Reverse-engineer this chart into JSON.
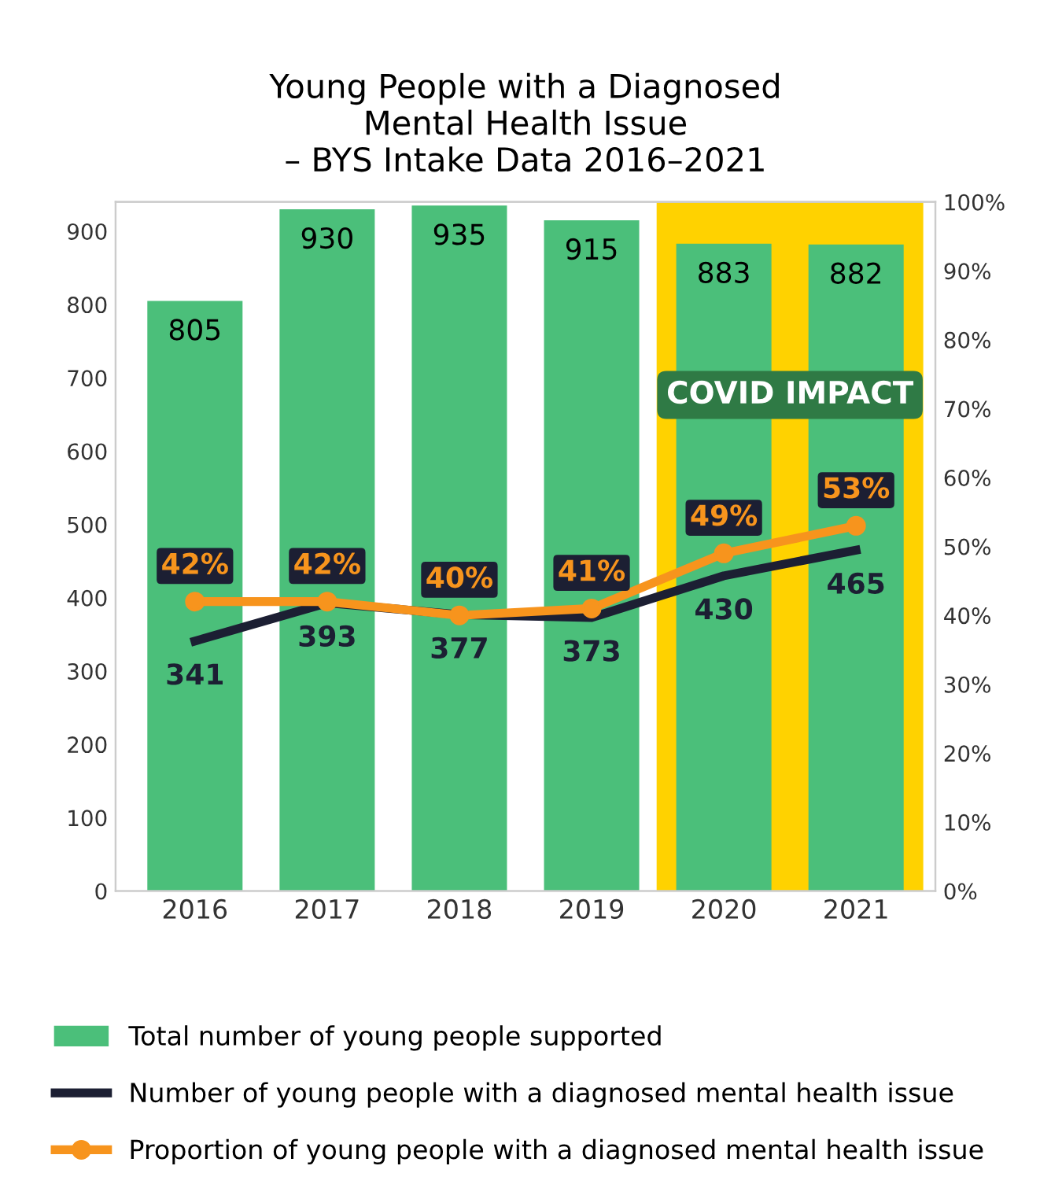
{
  "chart_data": {
    "type": "bar",
    "title": "Young People with a Diagnosed\nMental Health Issue\n– BYS Intake Data 2016–2021",
    "categories": [
      "2016",
      "2017",
      "2018",
      "2019",
      "2020",
      "2021"
    ],
    "series": [
      {
        "name": "Total number of young people supported",
        "color": "#4bbf7a",
        "values": [
          805,
          930,
          935,
          915,
          883,
          882
        ]
      },
      {
        "name": "Number of young people with a diagnosed mental health issue",
        "type": "line",
        "color": "#1c1f33",
        "marker": "none",
        "values": [
          341,
          393,
          377,
          373,
          430,
          465
        ],
        "value_labels": [
          "341",
          "393",
          "377",
          "373",
          "430",
          "465"
        ]
      },
      {
        "name": "Proportion of young people with a diagnosed mental health issue",
        "type": "line",
        "axis": "y2",
        "color": "#f7941d",
        "marker": "circle",
        "values": [
          42,
          42,
          40,
          41,
          49,
          53
        ],
        "value_labels": [
          "42%",
          "42%",
          "40%",
          "41%",
          "49%",
          "53%"
        ]
      }
    ],
    "ylim": [
      0,
      940
    ],
    "yticks": [
      0,
      100,
      200,
      300,
      400,
      500,
      600,
      700,
      800,
      900
    ],
    "y2lim": [
      0,
      100
    ],
    "y2ticks": [
      {
        "value": 0,
        "label": "0%"
      },
      {
        "value": 10,
        "label": "10%"
      },
      {
        "value": 20,
        "label": "20%"
      },
      {
        "value": 30,
        "label": "30%"
      },
      {
        "value": 40,
        "label": "40%"
      },
      {
        "value": 50,
        "label": "50%"
      },
      {
        "value": 60,
        "label": "60%"
      },
      {
        "value": 70,
        "label": "70%"
      },
      {
        "value": 80,
        "label": "80%"
      },
      {
        "value": 90,
        "label": "90%"
      },
      {
        "value": 100,
        "label": "100%"
      }
    ],
    "bands": [
      {
        "axis": "x",
        "from": "2020",
        "to": "2021",
        "label": "COVID IMPACT",
        "color": "#ffd200"
      }
    ],
    "grid": false,
    "legend": "bottom",
    "line_style": "solid",
    "data_labels": true
  }
}
